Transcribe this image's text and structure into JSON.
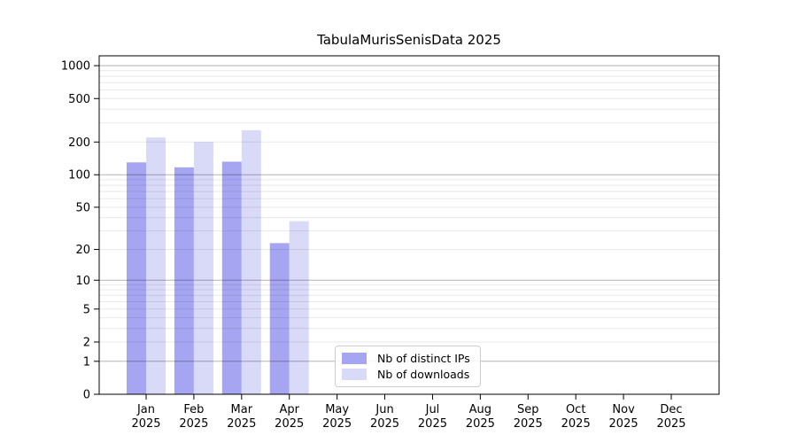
{
  "page": {
    "background": "#ffffff"
  },
  "chart_data": {
    "type": "bar",
    "title": "TabulaMurisSenisData 2025",
    "categories": [
      "Jan 2025",
      "Feb 2025",
      "Mar 2025",
      "Apr 2025",
      "May 2025",
      "Jun 2025",
      "Jul 2025",
      "Aug 2025",
      "Sep 2025",
      "Oct 2025",
      "Nov 2025",
      "Dec 2025"
    ],
    "series": [
      {
        "name": "Nb of distinct IPs",
        "color": "#a5a5f1",
        "values": [
          130,
          117,
          132,
          23,
          0,
          0,
          0,
          0,
          0,
          0,
          0,
          0
        ]
      },
      {
        "name": "Nb of downloads",
        "color": "#d9d9f8",
        "values": [
          220,
          200,
          256,
          37,
          0,
          0,
          0,
          0,
          0,
          0,
          0,
          0
        ]
      }
    ],
    "xlabel": "",
    "ylabel": "",
    "yscale": "log-like (position proportional to log10(1+value), 0 at baseline)",
    "y_ticks": [
      0,
      1,
      2,
      5,
      10,
      20,
      50,
      100,
      200,
      500,
      1000
    ],
    "ylim": [
      0,
      1230
    ],
    "grid": "horizontal, major (powers of 10, darker) + minor (2-9 per decade, lighter), drawn over bars",
    "legend": {
      "position": "inside bottom-center"
    }
  },
  "colors": {
    "spine": "#000000",
    "grid_major": "rgba(0,0,0,0.30)",
    "grid_minor": "rgba(0,0,0,0.09)",
    "legend_border": "#cccccc"
  }
}
